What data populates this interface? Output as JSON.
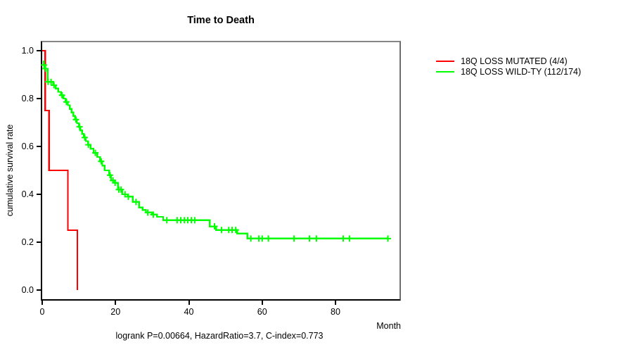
{
  "title": "Time to Death",
  "y_axis_label": "cumulative survival rate",
  "x_axis_label": "Month",
  "footer_stats": "logrank P=0.00664, HazardRatio=3.7, C-index=0.773",
  "legend": {
    "items": [
      {
        "label": "18Q LOSS MUTATED (4/4)",
        "color": "#ff0000"
      },
      {
        "label": "18Q LOSS WILD-TY (112/174)",
        "color": "#00ff00"
      }
    ]
  },
  "chart_data": {
    "type": "line",
    "subtype": "kaplan_meier_step",
    "title": "Time to Death",
    "xlabel": "Month",
    "ylabel": "cumulative survival rate",
    "xlim": [
      0,
      97.5
    ],
    "ylim": [
      0.0,
      1.0
    ],
    "xticks": [
      0,
      20,
      40,
      60,
      80
    ],
    "yticks": [
      0.0,
      0.2,
      0.4,
      0.6,
      0.8,
      1.0
    ],
    "grid": false,
    "legend_position": "right-outside",
    "series": [
      {
        "name": "18Q LOSS MUTATED (4/4)",
        "color": "#ff0000",
        "steps": [
          [
            0,
            1.0
          ],
          [
            0.8,
            0.75
          ],
          [
            1.9,
            0.5
          ],
          [
            7.0,
            0.25
          ],
          [
            9.6,
            0.0
          ]
        ],
        "censor_months": [],
        "end_month": 9.6
      },
      {
        "name": "18Q LOSS WILD-TY (112/174)",
        "color": "#00ff00",
        "steps": [
          [
            0.2,
            0.955
          ],
          [
            0.4,
            0.94
          ],
          [
            0.6,
            0.925
          ],
          [
            1.5,
            0.87
          ],
          [
            3.0,
            0.856
          ],
          [
            3.7,
            0.842
          ],
          [
            4.4,
            0.828
          ],
          [
            5.1,
            0.814
          ],
          [
            5.8,
            0.8
          ],
          [
            6.4,
            0.786
          ],
          [
            7.0,
            0.772
          ],
          [
            7.5,
            0.757
          ],
          [
            8.0,
            0.742
          ],
          [
            8.5,
            0.727
          ],
          [
            9.0,
            0.712
          ],
          [
            9.5,
            0.697
          ],
          [
            10.0,
            0.682
          ],
          [
            10.4,
            0.667
          ],
          [
            10.9,
            0.652
          ],
          [
            11.4,
            0.637
          ],
          [
            11.9,
            0.622
          ],
          [
            12.5,
            0.607
          ],
          [
            13.2,
            0.59
          ],
          [
            14.0,
            0.573
          ],
          [
            15.0,
            0.556
          ],
          [
            15.8,
            0.538
          ],
          [
            16.4,
            0.52
          ],
          [
            17.0,
            0.5
          ],
          [
            18.3,
            0.48
          ],
          [
            18.8,
            0.458
          ],
          [
            19.8,
            0.448
          ],
          [
            20.7,
            0.42
          ],
          [
            21.8,
            0.4
          ],
          [
            23.3,
            0.39
          ],
          [
            24.7,
            0.368
          ],
          [
            26.4,
            0.345
          ],
          [
            27.4,
            0.335
          ],
          [
            28.3,
            0.324
          ],
          [
            30.0,
            0.315
          ],
          [
            31.3,
            0.306
          ],
          [
            33.0,
            0.292
          ],
          [
            45.7,
            0.266
          ],
          [
            47.4,
            0.251
          ],
          [
            53.2,
            0.236
          ],
          [
            56.0,
            0.215
          ]
        ],
        "censor_months": [
          0.5,
          0.9,
          1.6,
          2.4,
          3.2,
          5.4,
          6.6,
          9.2,
          10.2,
          11.6,
          12.6,
          14.5,
          16.1,
          18.5,
          19.3,
          19.9,
          20.9,
          21.5,
          22.6,
          23.5,
          25.6,
          28.8,
          30.3,
          34.0,
          36.8,
          37.8,
          38.8,
          39.7,
          40.7,
          41.6,
          47.0,
          48.9,
          50.9,
          51.8,
          52.8,
          56.9,
          59.1,
          60.0,
          61.7,
          68.7,
          72.9,
          74.8,
          82.1,
          83.8,
          94.3
        ],
        "end_month": 94.5
      }
    ]
  }
}
